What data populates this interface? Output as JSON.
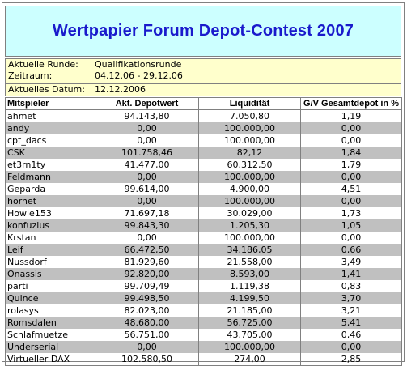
{
  "title": "Wertpapier Forum Depot-Contest 2007",
  "info": {
    "round_label": "Aktuelle Runde:",
    "round_value": "Qualifikationsrunde",
    "period_label": "Zeitraum:",
    "period_value": "04.12.06 - 29.12.06",
    "date_label": "Aktuelles Datum:",
    "date_value": "12.12.2006"
  },
  "table": {
    "headers": [
      "Mitspieler",
      "Akt. Depotwert",
      "Liquidität",
      "G/V Gesamtdepot in %"
    ],
    "rows": [
      [
        "ahmet",
        "94.143,80",
        "7.050,80",
        "1,19"
      ],
      [
        "andy",
        "0,00",
        "100.000,00",
        "0,00"
      ],
      [
        "cpt_dacs",
        "0,00",
        "100.000,00",
        "0,00"
      ],
      [
        "CSK",
        "101.758,46",
        "82,12",
        "1,84"
      ],
      [
        "et3rn1ty",
        "41.477,00",
        "60.312,50",
        "1,79"
      ],
      [
        "Feldmann",
        "0,00",
        "100.000,00",
        "0,00"
      ],
      [
        "Geparda",
        "99.614,00",
        "4.900,00",
        "4,51"
      ],
      [
        "hornet",
        "0,00",
        "100.000,00",
        "0,00"
      ],
      [
        "Howie153",
        "71.697,18",
        "30.029,00",
        "1,73"
      ],
      [
        "konfuzius",
        "99.843,30",
        "1.205,30",
        "1,05"
      ],
      [
        "Krstan",
        "0,00",
        "100.000,00",
        "0,00"
      ],
      [
        "Leif",
        "66.472,50",
        "34.186,05",
        "0,66"
      ],
      [
        "Nussdorf",
        "81.929,60",
        "21.558,00",
        "3,49"
      ],
      [
        "Onassis",
        "92.820,00",
        "8.593,00",
        "1,41"
      ],
      [
        "parti",
        "99.709,49",
        "1.119,38",
        "0,83"
      ],
      [
        "Quince",
        "99.498,50",
        "4.199,50",
        "3,70"
      ],
      [
        "rolasys",
        "82.023,00",
        "21.185,00",
        "3,21"
      ],
      [
        "Romsdalen",
        "48.680,00",
        "56.725,00",
        "5,41"
      ],
      [
        "Schlafmuetze",
        "56.751,00",
        "43.705,00",
        "0,46"
      ],
      [
        "Underserial",
        "0,00",
        "100.000,00",
        "0,00"
      ],
      [
        "Virtueller DAX",
        "102.580,50",
        "274,00",
        "2,85"
      ]
    ]
  },
  "colors": {
    "title_text": "#1a1acc",
    "title_bg": "#ccffff",
    "info_bg": "#ffffcc",
    "alt_row_bg": "#c0c0c0"
  }
}
